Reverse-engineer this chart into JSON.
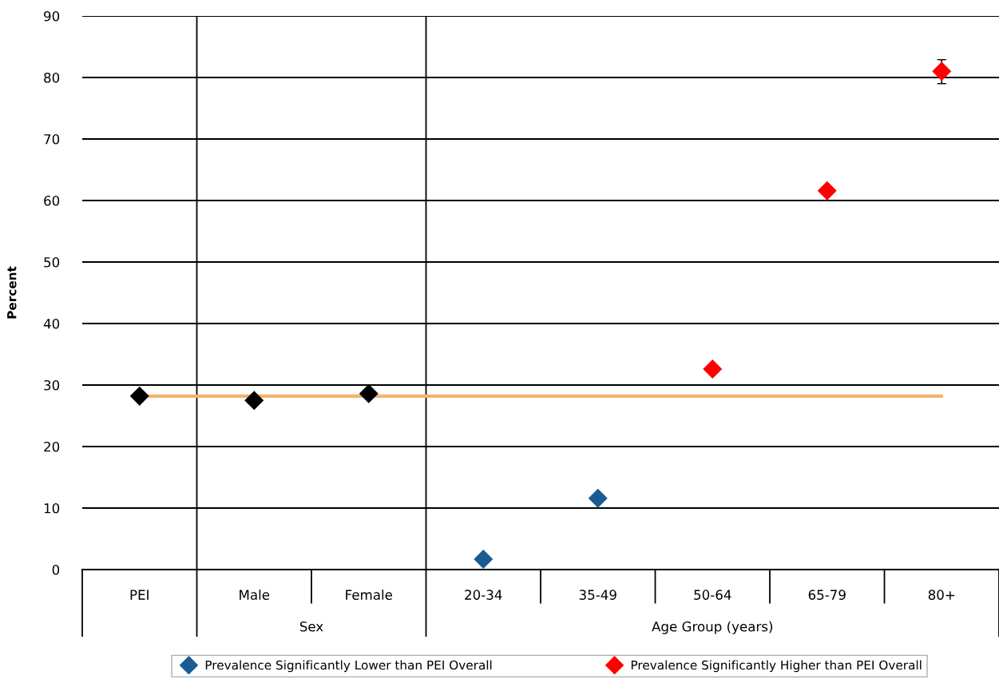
{
  "chart_data": {
    "type": "scatter",
    "ylabel": "Percent",
    "categories": [
      "PEI",
      "Male",
      "Female",
      "20-34",
      "35-49",
      "50-64",
      "65-79",
      "80+"
    ],
    "series": [
      {
        "color": "#000000",
        "values": [
          28.2,
          27.5,
          28.6,
          null,
          null,
          null,
          null,
          null
        ]
      },
      {
        "name": "Prevalence Significantly Lower than PEI Overall",
        "color": "#1a5b92",
        "values": [
          null,
          null,
          null,
          1.7,
          11.6,
          null,
          null,
          null
        ]
      },
      {
        "name": "Prevalence Significantly Higher than PEI Overall",
        "color": "#ff0000",
        "values": [
          null,
          null,
          null,
          null,
          null,
          32.6,
          61.6,
          81.0
        ],
        "errors": [
          null,
          null,
          null,
          null,
          null,
          null,
          null,
          [
            79.0,
            82.9
          ]
        ]
      }
    ],
    "ref_lines": [
      {
        "axis": "y",
        "value": 28.2,
        "color": "#f0b46e"
      }
    ],
    "annotations": [
      "Sex",
      "Age Group (years)"
    ],
    "ylim": [
      0,
      90
    ],
    "yticks": [
      0,
      10,
      20,
      30,
      40,
      50,
      60,
      70,
      80,
      90
    ],
    "grid": "y",
    "legend": "bottom",
    "marker": "diamond"
  }
}
